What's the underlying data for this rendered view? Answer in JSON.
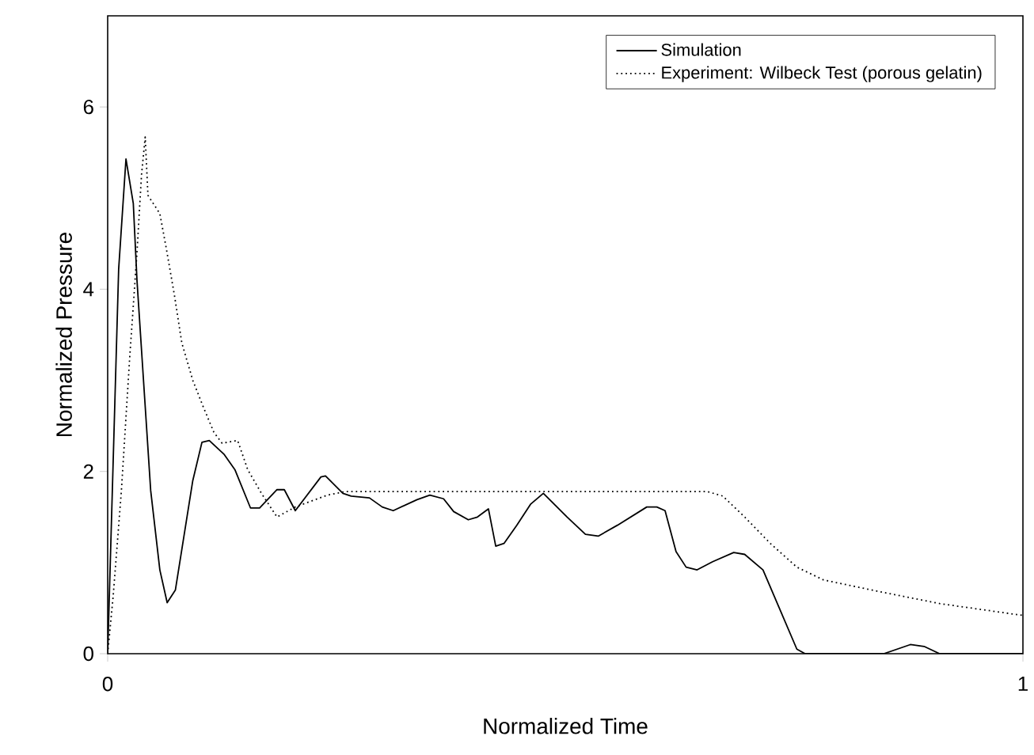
{
  "chart_data": {
    "type": "line",
    "xlabel": "Normalized Time",
    "ylabel": "Normalized Pressure",
    "xlim": [
      0,
      1
    ],
    "ylim": [
      0,
      7
    ],
    "xticks": [
      0,
      1
    ],
    "yticks": [
      0,
      2,
      4,
      6
    ],
    "grid": false,
    "legend": "top right",
    "marker": "none",
    "series": [
      {
        "name": "Simulation",
        "color": "#000000",
        "line_style": "solid",
        "x": [
          0,
          0.012,
          0.02,
          0.028,
          0.032,
          0.047,
          0.057,
          0.065,
          0.074,
          0.093,
          0.103,
          0.111,
          0.127,
          0.139,
          0.156,
          0.166,
          0.185,
          0.193,
          0.205,
          0.233,
          0.238,
          0.257,
          0.266,
          0.286,
          0.3,
          0.312,
          0.338,
          0.352,
          0.367,
          0.378,
          0.394,
          0.404,
          0.416,
          0.424,
          0.433,
          0.447,
          0.462,
          0.476,
          0.502,
          0.522,
          0.536,
          0.557,
          0.589,
          0.6,
          0.609,
          0.621,
          0.632,
          0.644,
          0.661,
          0.684,
          0.696,
          0.716,
          0.733,
          0.753,
          0.762,
          0.848,
          0.877,
          0.892,
          0.909,
          1.0
        ],
        "values": [
          0,
          4.22,
          5.43,
          4.94,
          4.1,
          1.79,
          0.92,
          0.56,
          0.7,
          1.9,
          2.32,
          2.34,
          2.19,
          2.02,
          1.6,
          1.6,
          1.8,
          1.8,
          1.57,
          1.94,
          1.95,
          1.76,
          1.73,
          1.71,
          1.61,
          1.57,
          1.69,
          1.74,
          1.7,
          1.56,
          1.47,
          1.5,
          1.59,
          1.18,
          1.21,
          1.41,
          1.64,
          1.76,
          1.5,
          1.31,
          1.29,
          1.41,
          1.61,
          1.61,
          1.57,
          1.12,
          0.95,
          0.92,
          1.01,
          1.11,
          1.09,
          0.92,
          0.52,
          0.05,
          0,
          0,
          0.1,
          0.08,
          0,
          0
        ]
      },
      {
        "name": "Experiment: Wilbeck Test (porous gelatin)",
        "color": "#000000",
        "line_style": "dotted",
        "x": [
          0,
          0.006,
          0.015,
          0.024,
          0.032,
          0.037,
          0.041,
          0.044,
          0.057,
          0.064,
          0.073,
          0.081,
          0.093,
          0.104,
          0.116,
          0.125,
          0.142,
          0.153,
          0.168,
          0.185,
          0.205,
          0.24,
          0.26,
          0.655,
          0.672,
          0.696,
          0.724,
          0.753,
          0.782,
          0.839,
          0.909,
          1.0
        ],
        "values": [
          0,
          0.63,
          1.79,
          3.24,
          4.4,
          5.26,
          5.67,
          5.03,
          4.83,
          4.45,
          3.93,
          3.41,
          3.0,
          2.72,
          2.43,
          2.31,
          2.34,
          2.02,
          1.76,
          1.5,
          1.61,
          1.74,
          1.78,
          1.78,
          1.73,
          1.5,
          1.21,
          0.95,
          0.81,
          0.69,
          0.55,
          0.42
        ]
      }
    ]
  }
}
